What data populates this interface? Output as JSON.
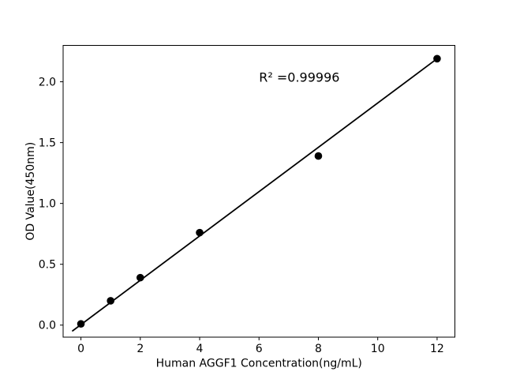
{
  "chart_data": {
    "type": "scatter",
    "title": "",
    "xlabel": "Human AGGF1 Concentration(ng/mL)",
    "ylabel": "OD Value(450nm)",
    "x": [
      0,
      1,
      2,
      4,
      8,
      12
    ],
    "y": [
      0.01,
      0.2,
      0.39,
      0.76,
      1.39,
      2.19
    ],
    "fit_line": {
      "x1": -0.28,
      "y1": -0.047,
      "x2": 12.0,
      "y2": 2.19
    },
    "annotation": {
      "text": "R² =0.99996",
      "x": 6.0,
      "y": 2.0
    },
    "xlim": [
      -0.6,
      12.6
    ],
    "ylim": [
      -0.099,
      2.299
    ],
    "xticks": {
      "values": [
        0,
        2,
        4,
        6,
        8,
        10,
        12
      ],
      "labels": [
        "0",
        "2",
        "4",
        "6",
        "8",
        "10",
        "12"
      ]
    },
    "yticks": {
      "values": [
        0,
        0.5,
        1.0,
        1.5,
        2.0
      ],
      "labels": [
        "0.0",
        "0.5",
        "1.0",
        "1.5",
        "2.0"
      ]
    },
    "grid": false,
    "legend": "none",
    "colors": {
      "marker": "#000000",
      "line": "#000000",
      "text": "#000000",
      "axis": "#000000",
      "background": "#ffffff"
    }
  }
}
